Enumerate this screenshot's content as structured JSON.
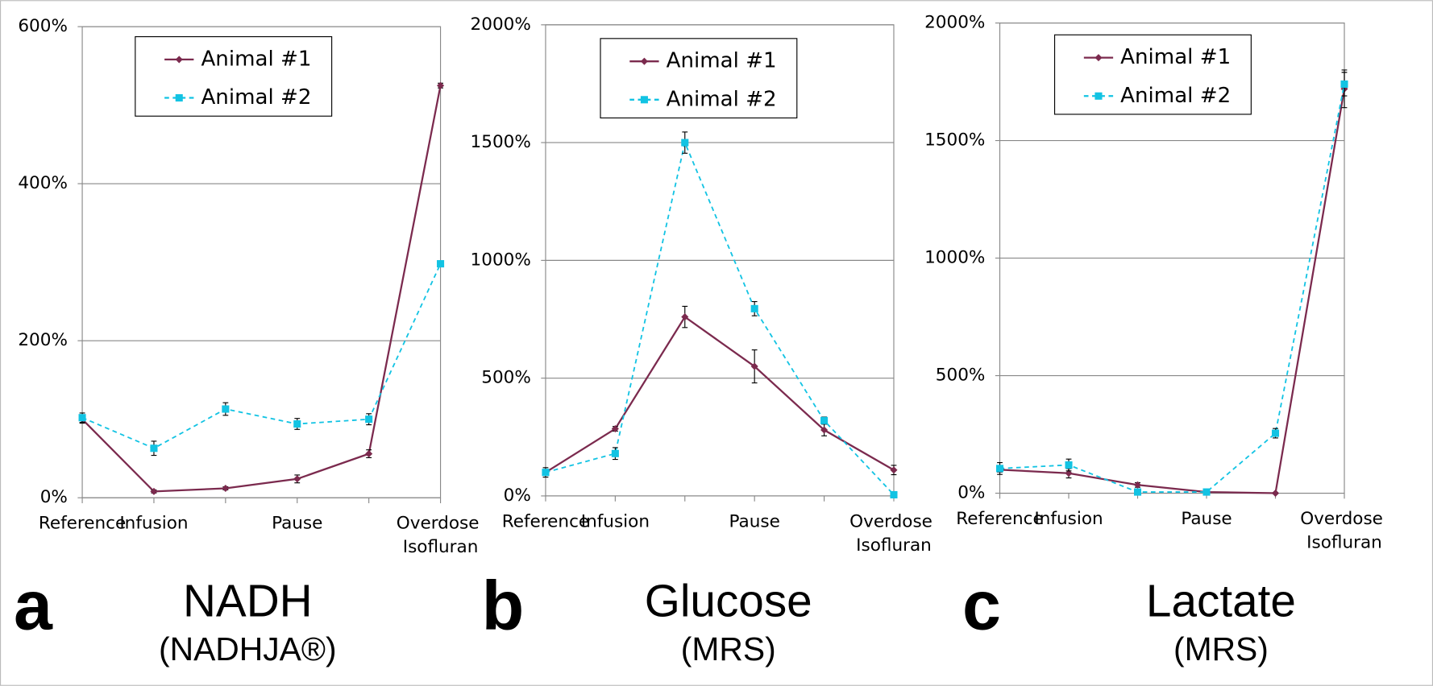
{
  "chart_data": [
    {
      "type": "line",
      "panel_label": "a",
      "title": "NADH",
      "subtitle": "(NADHJA®)",
      "categories": [
        "Reference",
        "Infusion",
        null,
        "Pause",
        null,
        "Overdose Isofluran"
      ],
      "ylim": [
        0,
        600
      ],
      "yticks": [
        {
          "value": 0,
          "label": "0%"
        },
        {
          "value": 200,
          "label": "200%"
        },
        {
          "value": 400,
          "label": "400%"
        },
        {
          "value": 600,
          "label": "600%"
        }
      ],
      "grid": true,
      "legend": "top",
      "series": [
        {
          "name": "Animal #1",
          "color": "#7b2a4e",
          "values": [
            100,
            8,
            12,
            24,
            56,
            525
          ],
          "errors": [
            5,
            2,
            2,
            5,
            5,
            3
          ]
        },
        {
          "name": "Animal #2",
          "color": "#12c3e3",
          "values": [
            102,
            63,
            113,
            94,
            100,
            298
          ],
          "errors": [
            6,
            9,
            8,
            7,
            7,
            3
          ]
        }
      ]
    },
    {
      "type": "line",
      "panel_label": "b",
      "title": "Glucose",
      "subtitle": "(MRS)",
      "categories": [
        "Reference",
        "Infusion",
        null,
        "Pause",
        null,
        "Overdose Isofluran"
      ],
      "ylim": [
        0,
        2000
      ],
      "yticks": [
        {
          "value": 0,
          "label": "0%"
        },
        {
          "value": 500,
          "label": "500%"
        },
        {
          "value": 1000,
          "label": "1000%"
        },
        {
          "value": 1500,
          "label": "1500%"
        },
        {
          "value": 2000,
          "label": "2000%"
        }
      ],
      "grid": true,
      "legend": "top",
      "series": [
        {
          "name": "Animal #1",
          "color": "#7b2a4e",
          "values": [
            100,
            285,
            760,
            550,
            280,
            110
          ],
          "errors": [
            10,
            10,
            45,
            70,
            25,
            20
          ]
        },
        {
          "name": "Animal #2",
          "color": "#12c3e3",
          "values": [
            100,
            180,
            1500,
            795,
            320,
            5
          ],
          "errors": [
            20,
            25,
            45,
            30,
            15,
            5
          ]
        }
      ]
    },
    {
      "type": "line",
      "panel_label": "c",
      "title": "Lactate",
      "subtitle": "(MRS)",
      "categories": [
        "Reference",
        "Infusion",
        null,
        "Pause",
        null,
        "Overdose Isofluran"
      ],
      "ylim": [
        0,
        2000
      ],
      "yticks": [
        {
          "value": 0,
          "label": "0%"
        },
        {
          "value": 500,
          "label": "500%"
        },
        {
          "value": 1000,
          "label": "1000%"
        },
        {
          "value": 1500,
          "label": "1500%"
        },
        {
          "value": 2000,
          "label": "2000%"
        }
      ],
      "grid": true,
      "legend": "top",
      "series": [
        {
          "name": "Animal #1",
          "color": "#7b2a4e",
          "values": [
            100,
            85,
            35,
            5,
            0,
            1720
          ],
          "errors": [
            10,
            20,
            10,
            3,
            3,
            80
          ]
        },
        {
          "name": "Animal #2",
          "color": "#12c3e3",
          "values": [
            105,
            120,
            5,
            5,
            255,
            1740
          ],
          "errors": [
            25,
            25,
            5,
            3,
            20,
            50
          ]
        }
      ]
    }
  ]
}
